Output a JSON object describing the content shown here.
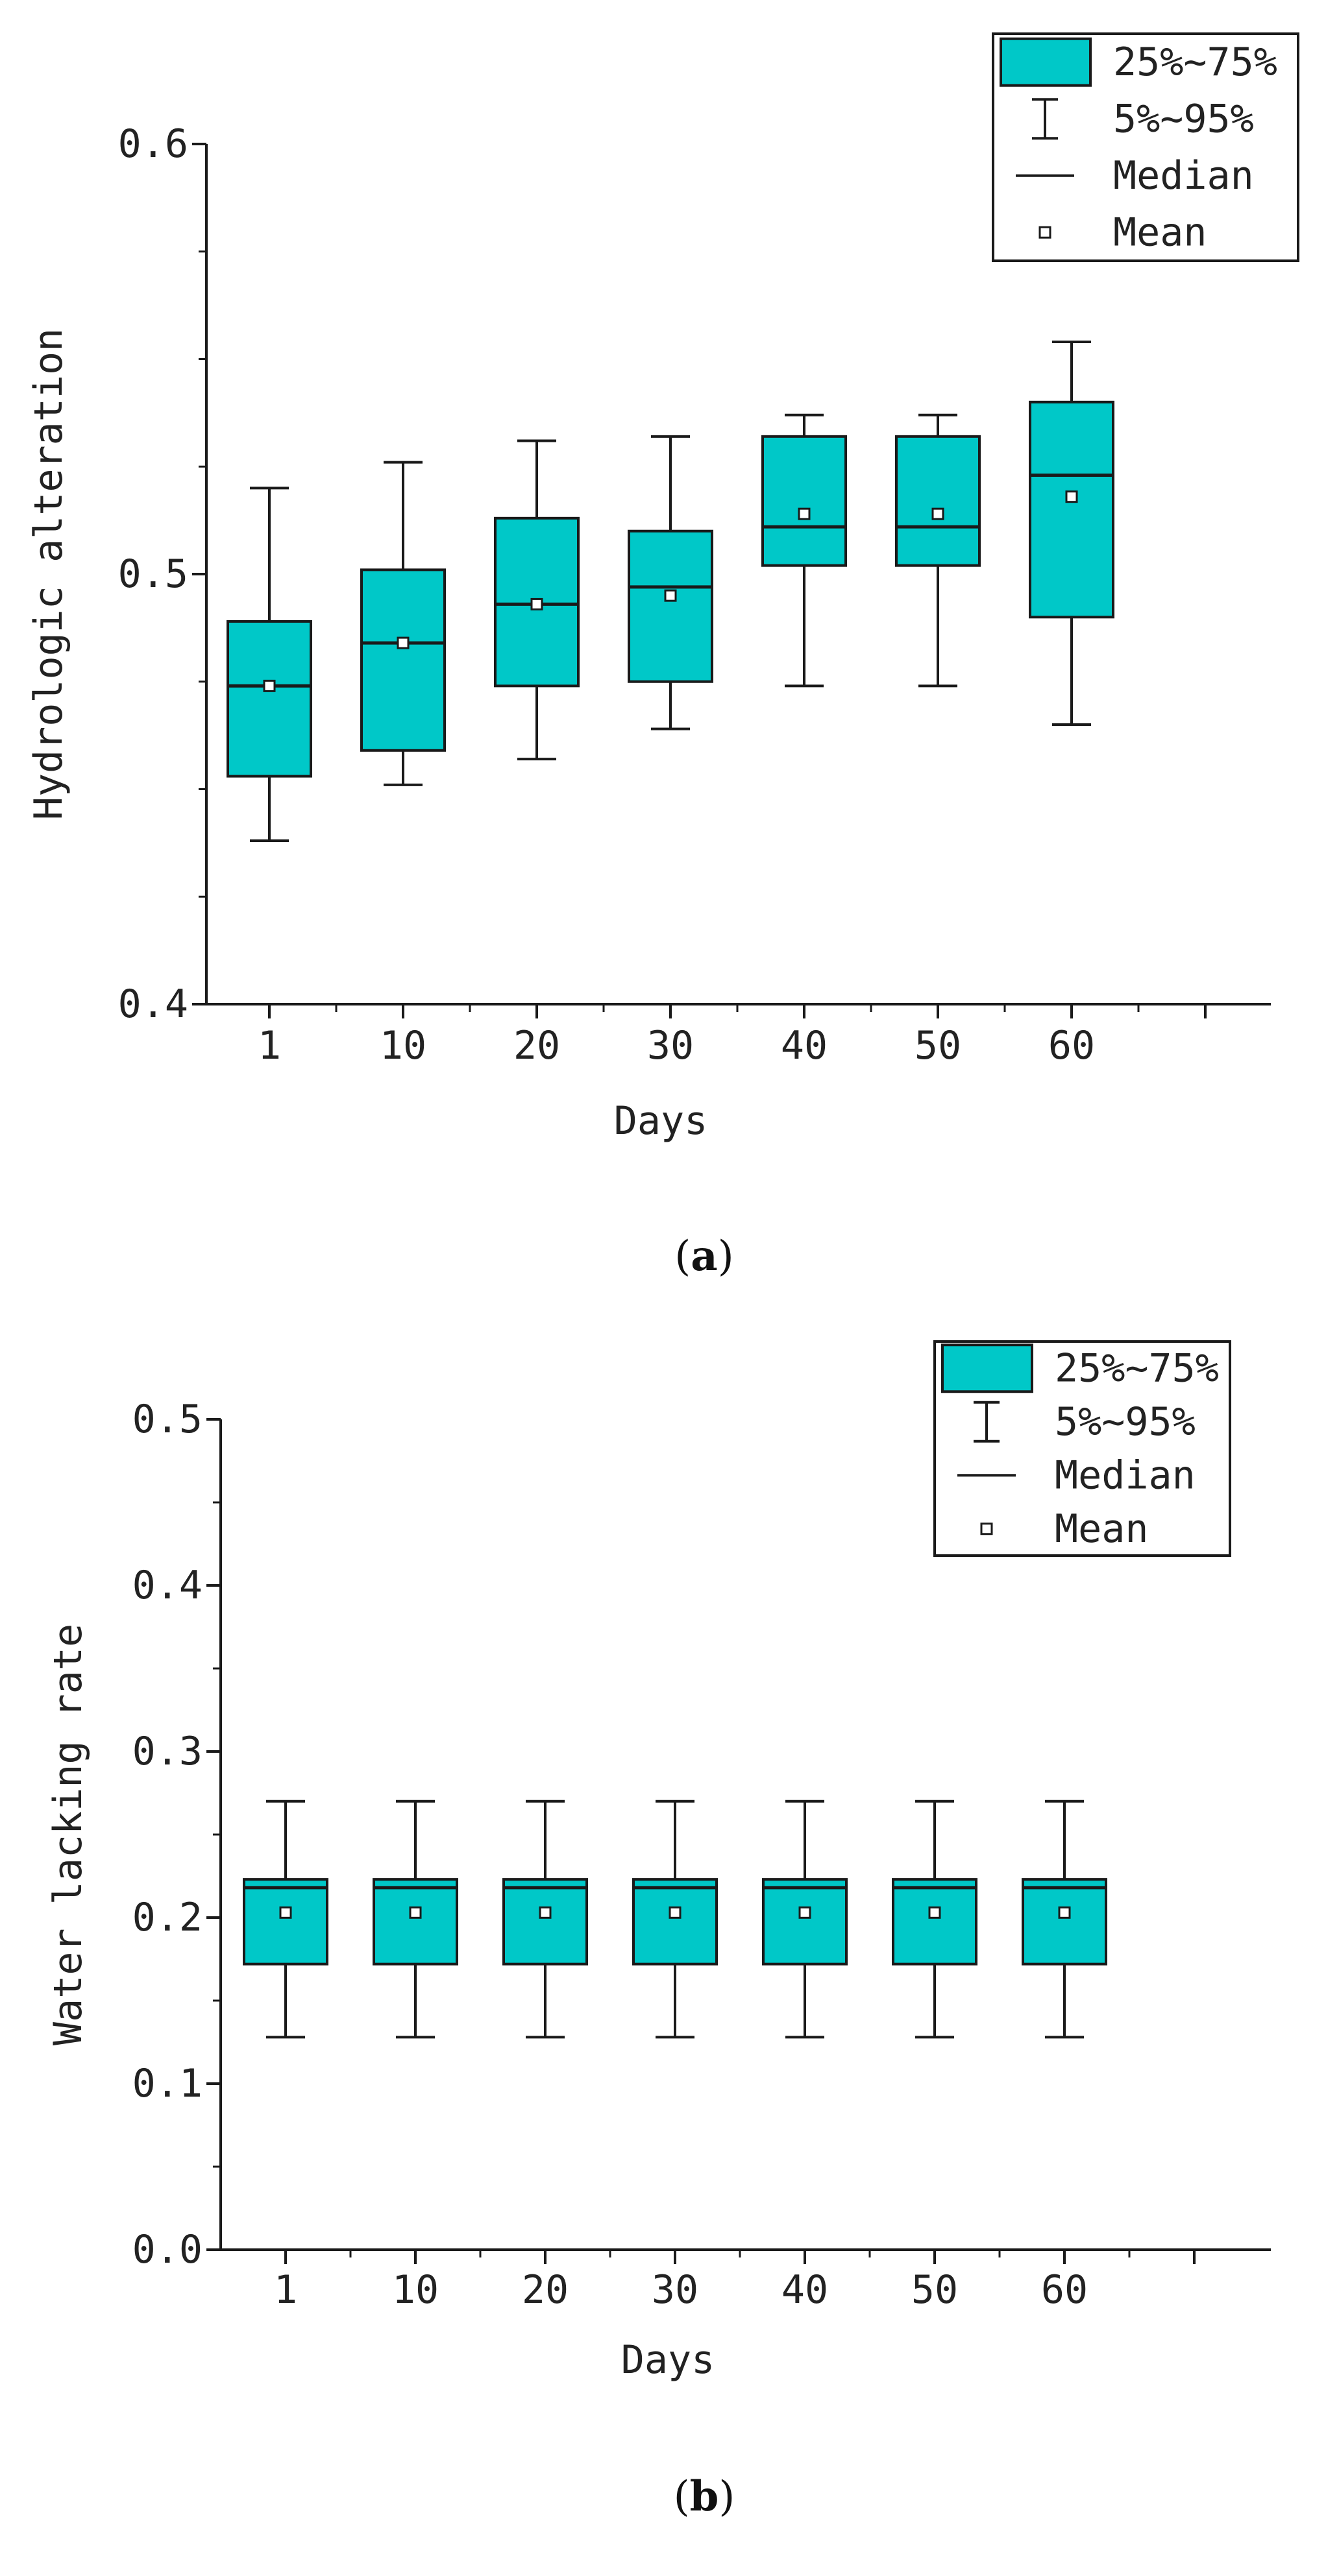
{
  "colors": {
    "box_fill": "#00c8c8",
    "stroke": "#1a1a1a",
    "background": "#ffffff"
  },
  "chart_data": [
    {
      "id": "a",
      "type": "box",
      "caption_label": "a",
      "xlabel": "Days",
      "ylabel": "Hydrologic alteration",
      "ylim": [
        0.4,
        0.6
      ],
      "yticks": [
        "0.4",
        "0.5",
        "0.6"
      ],
      "ytick_values": [
        0.4,
        0.5,
        0.6
      ],
      "minor_tick_step": 0.025,
      "categories": [
        "1",
        "10",
        "20",
        "30",
        "40",
        "50",
        "60"
      ],
      "boxes": [
        {
          "p5": 0.438,
          "q1": 0.453,
          "median": 0.474,
          "q3": 0.489,
          "p95": 0.52,
          "mean": 0.474
        },
        {
          "p5": 0.451,
          "q1": 0.459,
          "median": 0.484,
          "q3": 0.501,
          "p95": 0.526,
          "mean": 0.484
        },
        {
          "p5": 0.457,
          "q1": 0.474,
          "median": 0.493,
          "q3": 0.513,
          "p95": 0.531,
          "mean": 0.493
        },
        {
          "p5": 0.464,
          "q1": 0.475,
          "median": 0.497,
          "q3": 0.51,
          "p95": 0.532,
          "mean": 0.495
        },
        {
          "p5": 0.474,
          "q1": 0.502,
          "median": 0.511,
          "q3": 0.532,
          "p95": 0.537,
          "mean": 0.514
        },
        {
          "p5": 0.474,
          "q1": 0.502,
          "median": 0.511,
          "q3": 0.532,
          "p95": 0.537,
          "mean": 0.514
        },
        {
          "p5": 0.465,
          "q1": 0.49,
          "median": 0.523,
          "q3": 0.54,
          "p95": 0.554,
          "mean": 0.518
        }
      ],
      "legend": {
        "box": "25%~75%",
        "whisker": "5%~95%",
        "median": "Median",
        "mean": "Mean"
      }
    },
    {
      "id": "b",
      "type": "box",
      "caption_label": "b",
      "xlabel": "Days",
      "ylabel": "Water lacking rate",
      "ylim": [
        0.0,
        0.5
      ],
      "yticks": [
        "0.0",
        "0.1",
        "0.2",
        "0.3",
        "0.4",
        "0.5"
      ],
      "ytick_values": [
        0.0,
        0.1,
        0.2,
        0.3,
        0.4,
        0.5
      ],
      "minor_tick_step": 0.05,
      "categories": [
        "1",
        "10",
        "20",
        "30",
        "40",
        "50",
        "60"
      ],
      "boxes": [
        {
          "p5": 0.128,
          "q1": 0.172,
          "median": 0.218,
          "q3": 0.223,
          "p95": 0.27,
          "mean": 0.203
        },
        {
          "p5": 0.128,
          "q1": 0.172,
          "median": 0.218,
          "q3": 0.223,
          "p95": 0.27,
          "mean": 0.203
        },
        {
          "p5": 0.128,
          "q1": 0.172,
          "median": 0.218,
          "q3": 0.223,
          "p95": 0.27,
          "mean": 0.203
        },
        {
          "p5": 0.128,
          "q1": 0.172,
          "median": 0.218,
          "q3": 0.223,
          "p95": 0.27,
          "mean": 0.203
        },
        {
          "p5": 0.128,
          "q1": 0.172,
          "median": 0.218,
          "q3": 0.223,
          "p95": 0.27,
          "mean": 0.203
        },
        {
          "p5": 0.128,
          "q1": 0.172,
          "median": 0.218,
          "q3": 0.223,
          "p95": 0.27,
          "mean": 0.203
        },
        {
          "p5": 0.128,
          "q1": 0.172,
          "median": 0.218,
          "q3": 0.223,
          "p95": 0.27,
          "mean": 0.203
        }
      ],
      "legend": {
        "box": "25%~75%",
        "whisker": "5%~95%",
        "median": "Median",
        "mean": "Mean"
      }
    }
  ]
}
